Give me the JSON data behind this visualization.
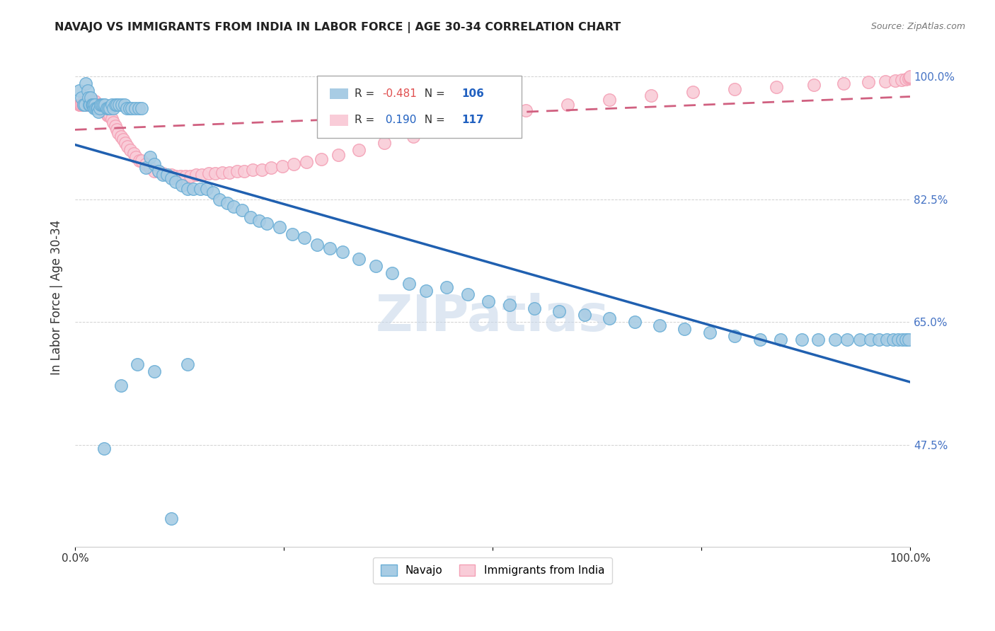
{
  "title": "NAVAJO VS IMMIGRANTS FROM INDIA IN LABOR FORCE | AGE 30-34 CORRELATION CHART",
  "source": "Source: ZipAtlas.com",
  "ylabel": "In Labor Force | Age 30-34",
  "xlim": [
    0.0,
    1.0
  ],
  "ylim": [
    0.33,
    1.04
  ],
  "yticks": [
    0.475,
    0.65,
    0.825,
    1.0
  ],
  "ytick_labels": [
    "47.5%",
    "65.0%",
    "82.5%",
    "100.0%"
  ],
  "xticks": [
    0.0,
    0.25,
    0.5,
    0.75,
    1.0
  ],
  "xtick_labels": [
    "0.0%",
    "",
    "",
    "",
    "100.0%"
  ],
  "navajo_R": -0.481,
  "navajo_N": 106,
  "india_R": 0.19,
  "india_N": 117,
  "navajo_color": "#a8cce4",
  "navajo_edge_color": "#6aaed6",
  "india_color": "#f9ccd8",
  "india_edge_color": "#f4a0b5",
  "navajo_line_color": "#2060b0",
  "india_line_color": "#d06080",
  "watermark_color": "#c8d8ea",
  "background_color": "#ffffff",
  "navajo_x": [
    0.005,
    0.008,
    0.01,
    0.012,
    0.013,
    0.015,
    0.016,
    0.017,
    0.018,
    0.019,
    0.02,
    0.021,
    0.022,
    0.023,
    0.024,
    0.025,
    0.026,
    0.027,
    0.028,
    0.03,
    0.031,
    0.032,
    0.034,
    0.036,
    0.038,
    0.04,
    0.042,
    0.044,
    0.046,
    0.048,
    0.05,
    0.053,
    0.056,
    0.059,
    0.062,
    0.065,
    0.068,
    0.072,
    0.076,
    0.08,
    0.085,
    0.09,
    0.095,
    0.1,
    0.105,
    0.11,
    0.115,
    0.12,
    0.128,
    0.135,
    0.142,
    0.15,
    0.158,
    0.165,
    0.173,
    0.182,
    0.19,
    0.2,
    0.21,
    0.22,
    0.23,
    0.245,
    0.26,
    0.275,
    0.29,
    0.305,
    0.32,
    0.34,
    0.36,
    0.38,
    0.4,
    0.42,
    0.445,
    0.47,
    0.495,
    0.52,
    0.55,
    0.58,
    0.61,
    0.64,
    0.67,
    0.7,
    0.73,
    0.76,
    0.79,
    0.82,
    0.845,
    0.87,
    0.89,
    0.91,
    0.925,
    0.94,
    0.953,
    0.963,
    0.972,
    0.98,
    0.986,
    0.991,
    0.995,
    0.998,
    0.035,
    0.055,
    0.075,
    0.095,
    0.115,
    0.135
  ],
  "navajo_y": [
    0.98,
    0.97,
    0.96,
    0.96,
    0.99,
    0.98,
    0.97,
    0.96,
    0.96,
    0.97,
    0.96,
    0.96,
    0.96,
    0.955,
    0.96,
    0.955,
    0.955,
    0.955,
    0.95,
    0.955,
    0.96,
    0.96,
    0.96,
    0.96,
    0.955,
    0.955,
    0.955,
    0.96,
    0.955,
    0.96,
    0.96,
    0.96,
    0.96,
    0.96,
    0.955,
    0.955,
    0.955,
    0.955,
    0.955,
    0.955,
    0.87,
    0.885,
    0.875,
    0.865,
    0.86,
    0.86,
    0.855,
    0.85,
    0.845,
    0.84,
    0.84,
    0.84,
    0.84,
    0.835,
    0.825,
    0.82,
    0.815,
    0.81,
    0.8,
    0.795,
    0.79,
    0.785,
    0.775,
    0.77,
    0.76,
    0.755,
    0.75,
    0.74,
    0.73,
    0.72,
    0.705,
    0.695,
    0.7,
    0.69,
    0.68,
    0.675,
    0.67,
    0.665,
    0.66,
    0.655,
    0.65,
    0.645,
    0.64,
    0.635,
    0.63,
    0.625,
    0.625,
    0.625,
    0.625,
    0.625,
    0.625,
    0.625,
    0.625,
    0.625,
    0.625,
    0.625,
    0.625,
    0.625,
    0.625,
    0.625,
    0.47,
    0.56,
    0.59,
    0.58,
    0.37,
    0.59
  ],
  "india_x": [
    0.005,
    0.006,
    0.007,
    0.008,
    0.009,
    0.01,
    0.01,
    0.011,
    0.011,
    0.012,
    0.012,
    0.013,
    0.013,
    0.014,
    0.014,
    0.015,
    0.015,
    0.016,
    0.016,
    0.017,
    0.017,
    0.018,
    0.018,
    0.019,
    0.019,
    0.02,
    0.02,
    0.021,
    0.021,
    0.022,
    0.022,
    0.023,
    0.023,
    0.024,
    0.024,
    0.025,
    0.025,
    0.026,
    0.027,
    0.028,
    0.029,
    0.03,
    0.031,
    0.032,
    0.033,
    0.034,
    0.035,
    0.036,
    0.037,
    0.038,
    0.039,
    0.04,
    0.042,
    0.044,
    0.046,
    0.048,
    0.05,
    0.052,
    0.055,
    0.058,
    0.06,
    0.063,
    0.066,
    0.07,
    0.073,
    0.077,
    0.08,
    0.085,
    0.09,
    0.095,
    0.1,
    0.105,
    0.11,
    0.115,
    0.12,
    0.126,
    0.132,
    0.138,
    0.145,
    0.152,
    0.16,
    0.168,
    0.176,
    0.185,
    0.194,
    0.203,
    0.213,
    0.224,
    0.235,
    0.248,
    0.262,
    0.277,
    0.295,
    0.315,
    0.34,
    0.37,
    0.405,
    0.445,
    0.49,
    0.54,
    0.59,
    0.64,
    0.69,
    0.74,
    0.79,
    0.84,
    0.885,
    0.92,
    0.95,
    0.97,
    0.982,
    0.99,
    0.995,
    0.998,
    1.0,
    1.0,
    1.0
  ],
  "india_y": [
    0.96,
    0.96,
    0.96,
    0.96,
    0.96,
    0.96,
    0.965,
    0.96,
    0.965,
    0.96,
    0.965,
    0.96,
    0.965,
    0.96,
    0.965,
    0.96,
    0.965,
    0.96,
    0.965,
    0.96,
    0.965,
    0.96,
    0.965,
    0.96,
    0.965,
    0.96,
    0.965,
    0.96,
    0.965,
    0.96,
    0.965,
    0.96,
    0.965,
    0.96,
    0.965,
    0.96,
    0.96,
    0.96,
    0.96,
    0.96,
    0.96,
    0.96,
    0.955,
    0.955,
    0.955,
    0.955,
    0.95,
    0.95,
    0.95,
    0.95,
    0.945,
    0.945,
    0.945,
    0.94,
    0.935,
    0.93,
    0.925,
    0.92,
    0.915,
    0.91,
    0.905,
    0.9,
    0.895,
    0.89,
    0.885,
    0.88,
    0.88,
    0.875,
    0.87,
    0.865,
    0.865,
    0.862,
    0.86,
    0.86,
    0.858,
    0.858,
    0.858,
    0.858,
    0.86,
    0.86,
    0.862,
    0.862,
    0.863,
    0.863,
    0.865,
    0.865,
    0.867,
    0.867,
    0.87,
    0.872,
    0.875,
    0.878,
    0.882,
    0.888,
    0.895,
    0.905,
    0.915,
    0.93,
    0.942,
    0.952,
    0.96,
    0.967,
    0.973,
    0.978,
    0.982,
    0.985,
    0.988,
    0.99,
    0.992,
    0.993,
    0.994,
    0.995,
    0.996,
    0.997,
    0.998,
    0.999,
    1.0
  ]
}
